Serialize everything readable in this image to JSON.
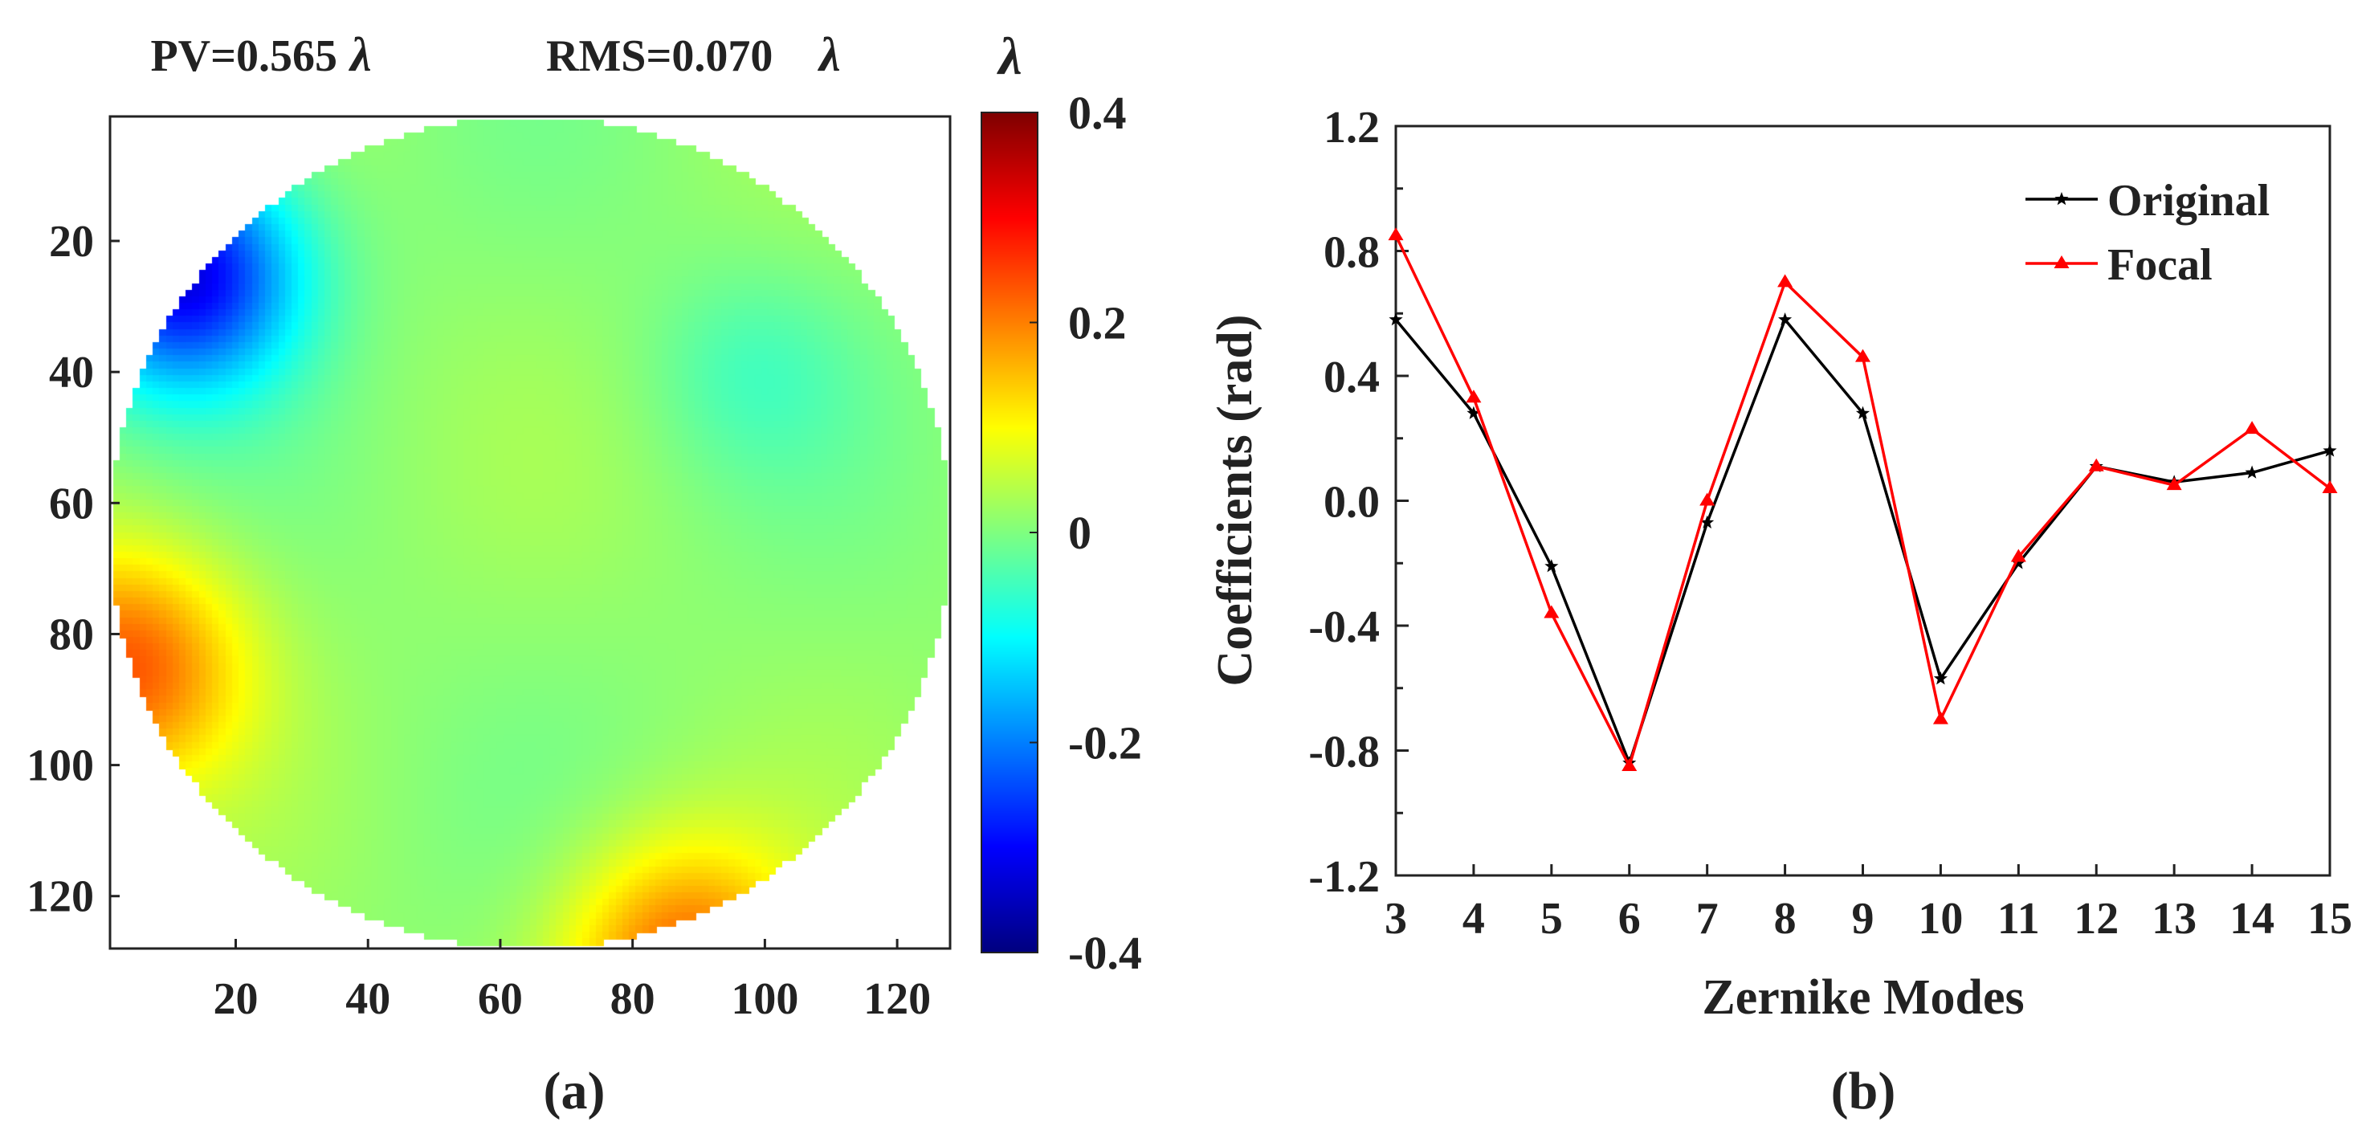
{
  "chart_data": [
    {
      "panel": "(a)",
      "type": "heatmap",
      "title_pv": "PV=0.565",
      "title_rms": "RMS=0.070",
      "title_unit": "λ",
      "x_ticks": [
        20,
        40,
        60,
        80,
        100,
        120
      ],
      "y_ticks": [
        20,
        40,
        60,
        80,
        100,
        120
      ],
      "xlim": [
        1,
        128
      ],
      "ylim": [
        1,
        128
      ],
      "grid": false,
      "colorbar": {
        "label": "λ",
        "range": [
          -0.4,
          0.4
        ],
        "ticks": [
          0.4,
          0.2,
          0,
          -0.2,
          -0.4
        ],
        "tick_labels": [
          "0.4",
          "0.2",
          "0",
          "-0.2",
          "-0.4"
        ],
        "colormap": "jet"
      },
      "features": [
        {
          "description": "negative lobe",
          "x": 12,
          "y": 25,
          "value": -0.34
        },
        {
          "description": "positive lobe",
          "x": 3,
          "y": 85,
          "value": 0.22
        },
        {
          "description": "positive lobe",
          "x": 88,
          "y": 130,
          "value": 0.21
        },
        {
          "description": "shallow trough",
          "x": 98,
          "y": 40,
          "value": -0.05
        }
      ]
    },
    {
      "panel": "(b)",
      "type": "line",
      "xlabel": "Zernike Modes",
      "ylabel": "Coefficients (rad)",
      "xlim": [
        3,
        15
      ],
      "ylim": [
        -1.2,
        1.2
      ],
      "x": [
        3,
        4,
        5,
        6,
        7,
        8,
        9,
        10,
        11,
        12,
        13,
        14,
        15
      ],
      "x_tick_labels": [
        "3",
        "4",
        "5",
        "6",
        "7",
        "8",
        "9",
        "10",
        "11",
        "12",
        "13",
        "14",
        "15"
      ],
      "y_ticks": [
        1.2,
        0.8,
        0.4,
        0.0,
        -0.4,
        -0.8,
        -1.2
      ],
      "y_tick_labels": [
        "1.2",
        "0.8",
        "0.4",
        "0.0",
        "-0.4",
        "-0.8",
        "-1.2"
      ],
      "grid": false,
      "legend_position": "top-right",
      "series": [
        {
          "name": "Original",
          "color": "#000000",
          "marker": "star",
          "values": [
            0.58,
            0.28,
            -0.21,
            -0.84,
            -0.07,
            0.58,
            0.28,
            -0.57,
            -0.2,
            0.11,
            0.06,
            0.09,
            0.16
          ]
        },
        {
          "name": "Focal",
          "color": "#ff0000",
          "marker": "triangle",
          "values": [
            0.85,
            0.33,
            -0.36,
            -0.85,
            0.0,
            0.7,
            0.46,
            -0.7,
            -0.18,
            0.11,
            0.05,
            0.23,
            0.04
          ]
        }
      ]
    }
  ]
}
